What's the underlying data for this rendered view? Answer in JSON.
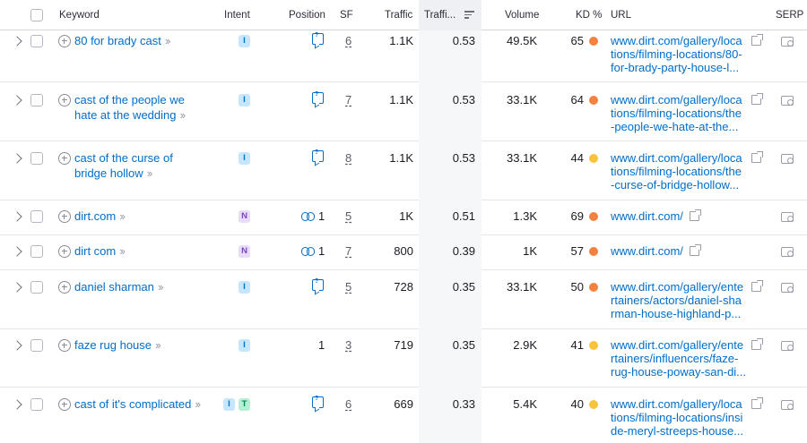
{
  "header": {
    "keyword": "Keyword",
    "intent": "Intent",
    "position": "Position",
    "sf": "SF",
    "traffic": "Traffic",
    "traffic_share": "Traffi...",
    "volume": "Volume",
    "kd": "KD %",
    "url": "URL",
    "serp": "SERP"
  },
  "colors": {
    "kd_orange": "#f4813f",
    "kd_yellow": "#f9c33c",
    "link": "#006dca"
  },
  "rows": [
    {
      "keyword": "80 for brady cast",
      "intents": [
        "I"
      ],
      "position_type": "serp-feature",
      "position": "",
      "sf": "6",
      "traffic": "1.1K",
      "traffic_share": "0.53",
      "volume": "49.5K",
      "kd": "65",
      "kd_level": "orange",
      "url_lines": [
        "www.dirt.com/gallery/loca",
        "tions/filming-locations/80-",
        "for-brady-party-house-l..."
      ]
    },
    {
      "keyword_lines": [
        "cast of the people we",
        "hate at the wedding"
      ],
      "intents": [
        "I"
      ],
      "position_type": "serp-feature",
      "position": "",
      "sf": "7",
      "traffic": "1.1K",
      "traffic_share": "0.53",
      "volume": "33.1K",
      "kd": "64",
      "kd_level": "orange",
      "url_lines": [
        "www.dirt.com/gallery/loca",
        "tions/filming-locations/the",
        "-people-we-hate-at-the..."
      ]
    },
    {
      "keyword_lines": [
        "cast of the curse of",
        "bridge hollow"
      ],
      "intents": [
        "I"
      ],
      "position_type": "serp-feature",
      "position": "",
      "sf": "8",
      "traffic": "1.1K",
      "traffic_share": "0.53",
      "volume": "33.1K",
      "kd": "44",
      "kd_level": "yellow",
      "url_lines": [
        "www.dirt.com/gallery/loca",
        "tions/filming-locations/the",
        "-curse-of-bridge-hollow..."
      ]
    },
    {
      "keyword": "dirt.com",
      "intents": [
        "N"
      ],
      "position_type": "link",
      "position": "1",
      "sf": "5",
      "traffic": "1K",
      "traffic_share": "0.51",
      "volume": "1.3K",
      "kd": "69",
      "kd_level": "orange",
      "url_lines": [
        "www.dirt.com/"
      ]
    },
    {
      "keyword": "dirt com",
      "intents": [
        "N"
      ],
      "position_type": "link",
      "position": "1",
      "sf": "7",
      "traffic": "800",
      "traffic_share": "0.39",
      "volume": "1K",
      "kd": "57",
      "kd_level": "orange",
      "url_lines": [
        "www.dirt.com/"
      ]
    },
    {
      "keyword": "daniel sharman",
      "intents": [
        "I"
      ],
      "position_type": "serp-feature",
      "position": "",
      "sf": "5",
      "traffic": "728",
      "traffic_share": "0.35",
      "volume": "33.1K",
      "kd": "50",
      "kd_level": "orange",
      "url_lines": [
        "www.dirt.com/gallery/ente",
        "rtainers/actors/daniel-sha",
        "rman-house-highland-p..."
      ]
    },
    {
      "keyword": "faze rug house",
      "intents": [
        "I"
      ],
      "position_type": "number",
      "position": "1",
      "sf": "3",
      "traffic": "719",
      "traffic_share": "0.35",
      "volume": "2.9K",
      "kd": "41",
      "kd_level": "yellow",
      "url_lines": [
        "www.dirt.com/gallery/ente",
        "rtainers/influencers/faze-",
        "rug-house-poway-san-di..."
      ]
    },
    {
      "keyword": "cast of it's complicated",
      "intents": [
        "I",
        "T"
      ],
      "position_type": "serp-feature",
      "position": "",
      "sf": "6",
      "traffic": "669",
      "traffic_share": "0.33",
      "volume": "5.4K",
      "kd": "40",
      "kd_level": "yellow",
      "url_lines": [
        "www.dirt.com/gallery/loca",
        "tions/filming-locations/insi",
        "de-meryl-streeps-house..."
      ]
    }
  ]
}
